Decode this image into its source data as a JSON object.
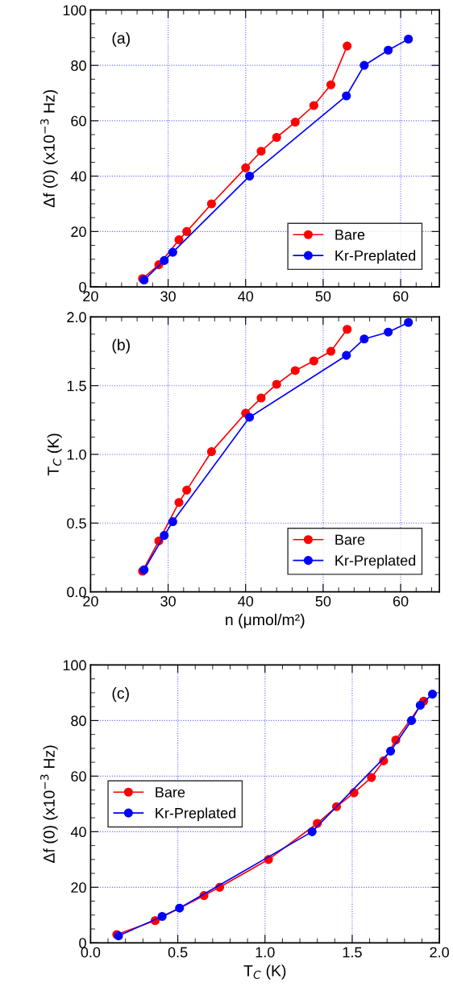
{
  "chart_data": [
    {
      "type": "line",
      "annotations": [
        "(a)"
      ],
      "ylabel": "Δf (0) (x10$^{−3}$ Hz)",
      "xlim": [
        20,
        65
      ],
      "xticks": [
        20,
        30,
        40,
        50,
        60
      ],
      "ylim": [
        0,
        100
      ],
      "yticks": [
        0,
        20,
        40,
        60,
        80,
        100
      ],
      "grid": true,
      "legend": "lower right",
      "marker": "circle",
      "line_style": "solid",
      "series": [
        {
          "name": "Bare",
          "color": "#ff0000",
          "x": [
            26.7,
            28.8,
            31.4,
            32.4,
            35.6,
            40.0,
            42.0,
            44.0,
            46.4,
            48.8,
            51.0,
            53.1
          ],
          "values": [
            3,
            8,
            17,
            20,
            30,
            43,
            49,
            54,
            59.5,
            65.5,
            73,
            87
          ]
        },
        {
          "name": "Kr-Preplated",
          "color": "#0000ff",
          "x": [
            26.9,
            29.5,
            30.6,
            40.5,
            53.0,
            55.3,
            58.4,
            61.0
          ],
          "values": [
            2.5,
            9.5,
            12.5,
            40,
            69,
            80,
            85.5,
            89.5
          ]
        }
      ]
    },
    {
      "type": "line",
      "annotations": [
        "(b)"
      ],
      "xlabel": "n (μmol/m²)",
      "ylabel": "T$_{C}$ (K)",
      "xlim": [
        20,
        65
      ],
      "xticks": [
        20,
        30,
        40,
        50,
        60
      ],
      "ylim": [
        0,
        2
      ],
      "yticks": [
        {
          "value": 0,
          "label": "0.0"
        },
        {
          "value": 0.5,
          "label": "0.5"
        },
        {
          "value": 1,
          "label": "1.0"
        },
        {
          "value": 1.5,
          "label": "1.5"
        },
        {
          "value": 2,
          "label": "2.0"
        }
      ],
      "grid": true,
      "legend": "lower right",
      "marker": "circle",
      "line_style": "solid",
      "series": [
        {
          "name": "Bare",
          "color": "#ff0000",
          "x": [
            26.7,
            28.8,
            31.4,
            32.4,
            35.6,
            40.0,
            42.0,
            44.0,
            46.4,
            48.8,
            51.0,
            53.1
          ],
          "values": [
            0.15,
            0.37,
            0.65,
            0.74,
            1.02,
            1.3,
            1.41,
            1.51,
            1.61,
            1.68,
            1.75,
            1.91
          ]
        },
        {
          "name": "Kr-Preplated",
          "color": "#0000ff",
          "x": [
            26.9,
            29.5,
            30.6,
            40.5,
            53.0,
            55.3,
            58.4,
            61.0
          ],
          "values": [
            0.16,
            0.41,
            0.51,
            1.27,
            1.72,
            1.84,
            1.89,
            1.96
          ]
        }
      ]
    },
    {
      "type": "line",
      "annotations": [
        "(c)"
      ],
      "xlabel": "T$_{C}$ (K)",
      "ylabel": "Δf (0) (x10$^{−3}$ Hz)",
      "xlim": [
        0,
        2
      ],
      "xticks": [
        {
          "value": 0,
          "label": "0.0"
        },
        {
          "value": 0.5,
          "label": "0.5"
        },
        {
          "value": 1,
          "label": "1.0"
        },
        {
          "value": 1.5,
          "label": "1.5"
        },
        {
          "value": 2,
          "label": "2.0"
        }
      ],
      "ylim": [
        0,
        100
      ],
      "yticks": [
        0,
        20,
        40,
        60,
        80,
        100
      ],
      "grid": true,
      "legend": "center left",
      "marker": "circle",
      "line_style": "solid",
      "series": [
        {
          "name": "Bare",
          "color": "#ff0000",
          "x": [
            0.15,
            0.37,
            0.65,
            0.74,
            1.02,
            1.3,
            1.41,
            1.51,
            1.61,
            1.68,
            1.75,
            1.91
          ],
          "values": [
            3,
            8,
            17,
            20,
            30,
            43,
            49,
            54,
            59.5,
            65.5,
            73,
            87
          ]
        },
        {
          "name": "Kr-Preplated",
          "color": "#0000ff",
          "x": [
            0.16,
            0.41,
            0.51,
            1.27,
            1.72,
            1.84,
            1.89,
            1.96
          ],
          "values": [
            2.5,
            9.5,
            12.5,
            40,
            69,
            80,
            85.5,
            89.5
          ]
        }
      ]
    }
  ]
}
